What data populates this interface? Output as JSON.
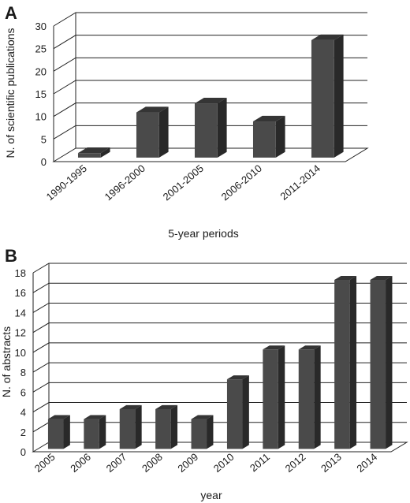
{
  "chart_data": [
    {
      "panel": "A",
      "type": "bar",
      "title": "",
      "xlabel": "5-year periods",
      "ylabel": "N. of scientific publications",
      "categories": [
        "1990-1995",
        "1996-2000",
        "2001-2005",
        "2006-2010",
        "2011-2014"
      ],
      "values": [
        1,
        10,
        12,
        8,
        26
      ],
      "ylim": [
        0,
        30
      ],
      "yticks": [
        "0",
        "5",
        "10",
        "15",
        "20",
        "25",
        "30"
      ],
      "grid": true,
      "three_d": true,
      "bar_color": "#4a4a4a"
    },
    {
      "panel": "B",
      "type": "bar",
      "title": "",
      "xlabel": "year",
      "ylabel": "N. of abstracts",
      "categories": [
        "2005",
        "2006",
        "2007",
        "2008",
        "2009",
        "2010",
        "2011",
        "2012",
        "2013",
        "2014"
      ],
      "values": [
        3,
        3,
        4,
        4,
        3,
        7,
        10,
        10,
        17,
        17
      ],
      "ylim": [
        0,
        18
      ],
      "yticks": [
        "0",
        "2",
        "4",
        "6",
        "8",
        "10",
        "12",
        "14",
        "16",
        "18"
      ],
      "grid": true,
      "three_d": true,
      "bar_color": "#4a4a4a"
    }
  ]
}
